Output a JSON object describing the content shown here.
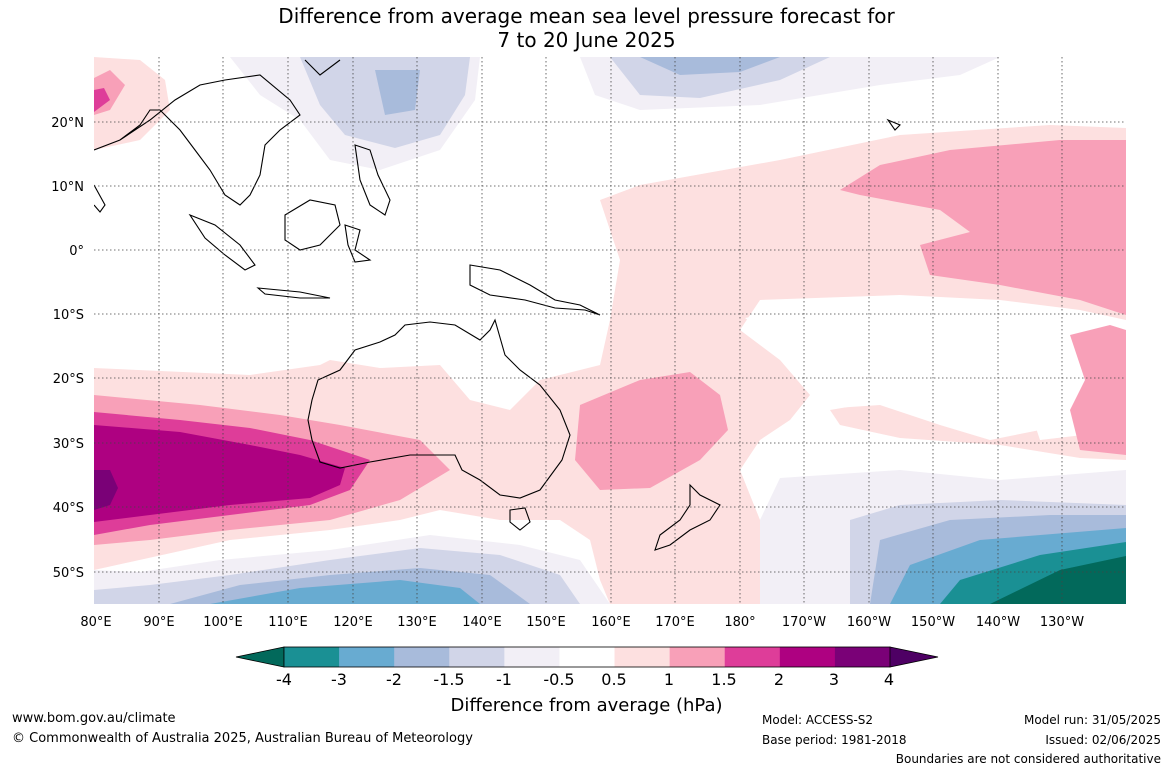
{
  "title": {
    "line1": "Difference from average mean sea level pressure forecast for",
    "line2": "7 to 20 June 2025"
  },
  "map": {
    "lat_labels": [
      "20°N",
      "10°N",
      "0°",
      "10°S",
      "20°S",
      "30°S",
      "40°S",
      "50°S"
    ],
    "lon_labels": [
      "80°E",
      "90°E",
      "100°E",
      "110°E",
      "120°E",
      "130°E",
      "140°E",
      "150°E",
      "160°E",
      "170°E",
      "180°",
      "170°W",
      "160°W",
      "150°W",
      "140°W",
      "130°W"
    ]
  },
  "colorbar": {
    "ticks": [
      "-4",
      "-3",
      "-2",
      "-1.5",
      "-1",
      "-0.5",
      "0.5",
      "1",
      "1.5",
      "2",
      "3",
      "4"
    ],
    "colors": [
      "#02695b",
      "#1a9094",
      "#68abd1",
      "#a8bbdb",
      "#d1d5e8",
      "#f2eff6",
      "#ffffff",
      "#fde0e0",
      "#f8a0b8",
      "#de3d99",
      "#ae0181",
      "#7a0177",
      "#4e0064"
    ],
    "label": "Difference from average (hPa)"
  },
  "footer": {
    "website": "www.bom.gov.au/climate",
    "copyright": "© Commonwealth of Australia 2025, Australian Bureau of Meteorology",
    "model": "Model: ACCESS-S2",
    "base_period": "Base period: 1981-2018",
    "model_run": "Model run: 31/05/2025",
    "issued": "Issued: 02/06/2025",
    "disclaimer": "Boundaries are not considered authoritative"
  }
}
